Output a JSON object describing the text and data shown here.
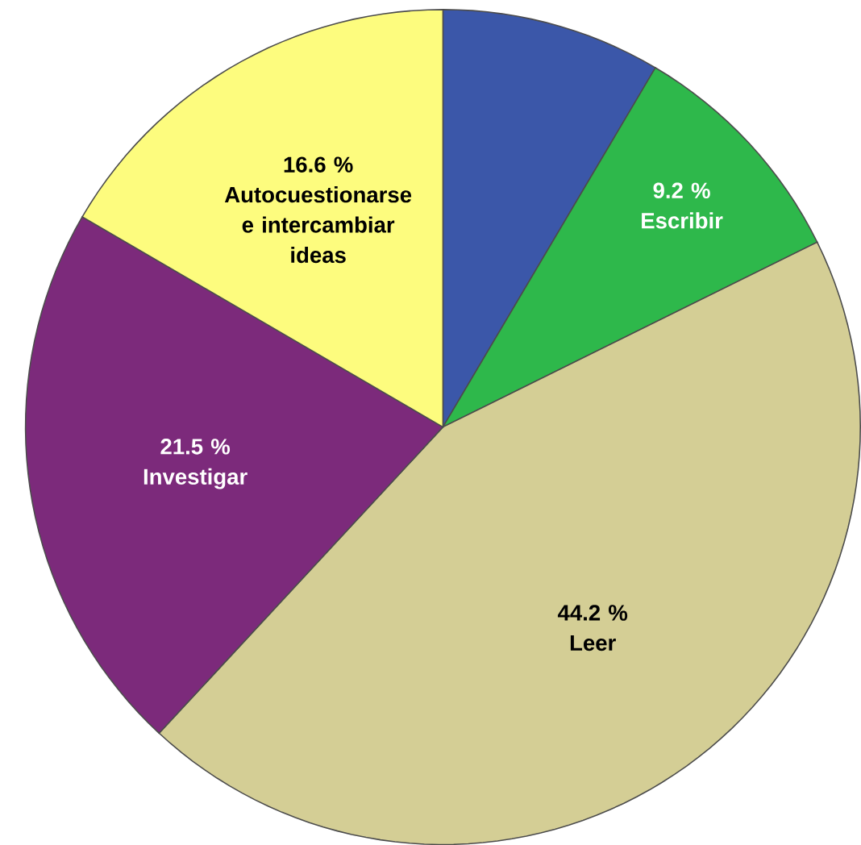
{
  "chart_data": {
    "type": "pie",
    "categories": [
      null,
      "Escribir",
      "Leer",
      "Investigar",
      "Autocuestionarse e intercambiar ideas"
    ],
    "values": [
      8.5,
      9.2,
      44.2,
      21.5,
      16.6
    ],
    "value_labels": [
      null,
      "9.2 %",
      "44.2 %",
      "21.5 %",
      "16.6 %"
    ],
    "colors": [
      "#3b57a9",
      "#2eb84b",
      "#d4ce95",
      "#7c2a7b",
      "#fdfc7e"
    ]
  }
}
